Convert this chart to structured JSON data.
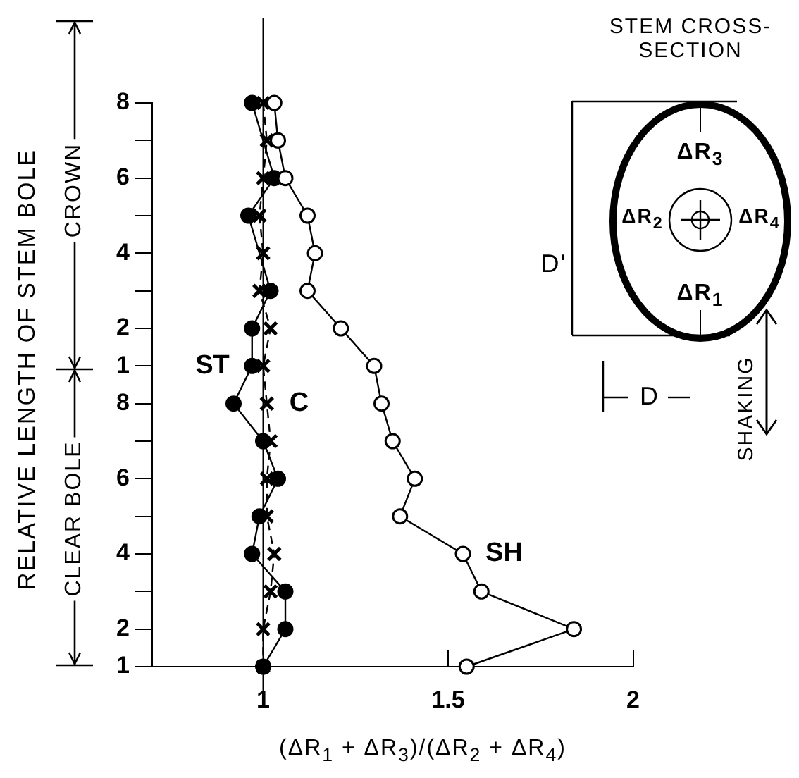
{
  "chart_data": {
    "type": "line",
    "ylabel": "RELATIVE LENGTH OF STEM BOLE",
    "xlabel": "(ΔR$_{1}$ + ΔR$_{3}$)/(ΔR$_{2}$ + ΔR$_{4}$)",
    "categories": [
      "8",
      null,
      "6",
      null,
      "4",
      null,
      "2",
      "1",
      "8",
      null,
      "6",
      null,
      "4",
      null,
      "2",
      "1"
    ],
    "orientation": "horizontal",
    "series": [
      {
        "name": "ST",
        "color": "#000000",
        "marker": "circle",
        "line_style": "solid",
        "values": [
          0.97,
          null,
          1.03,
          0.96,
          null,
          1.02,
          0.97,
          0.97,
          0.92,
          1.0,
          1.04,
          0.99,
          0.97,
          1.06,
          1.06,
          1.0
        ]
      },
      {
        "name": "C",
        "color": "#000000",
        "marker": "cross",
        "line_style": "dashed",
        "values": [
          1.0,
          1.01,
          1.0,
          0.99,
          1.0,
          0.99,
          1.02,
          1.0,
          1.01,
          1.02,
          1.01,
          1.01,
          1.03,
          1.02,
          1.0,
          1.0
        ]
      },
      {
        "name": "SH",
        "color": "#000000",
        "marker": "circle",
        "line_style": "solid",
        "values": [
          1.03,
          1.04,
          1.06,
          1.12,
          1.14,
          1.12,
          1.21,
          1.3,
          1.32,
          1.35,
          1.41,
          1.37,
          1.54,
          1.59,
          1.84,
          1.55
        ]
      }
    ],
    "xlim": [
      0.7,
      2.0
    ],
    "xticks": [
      1,
      1.5,
      2
    ],
    "ref_lines": [
      {
        "axis": "x",
        "value": 1,
        "color": "#000000"
      }
    ],
    "grid": false,
    "legend": false,
    "annotations": [
      "CROWN",
      "CLEAR BOLE",
      "STEM CROSS-SECTION",
      "ΔR$_{3}$",
      "ΔR$_{2}$",
      "ΔR$_{4}$",
      "ΔR$_{1}$",
      "D'",
      "D",
      "SHAKING"
    ]
  }
}
